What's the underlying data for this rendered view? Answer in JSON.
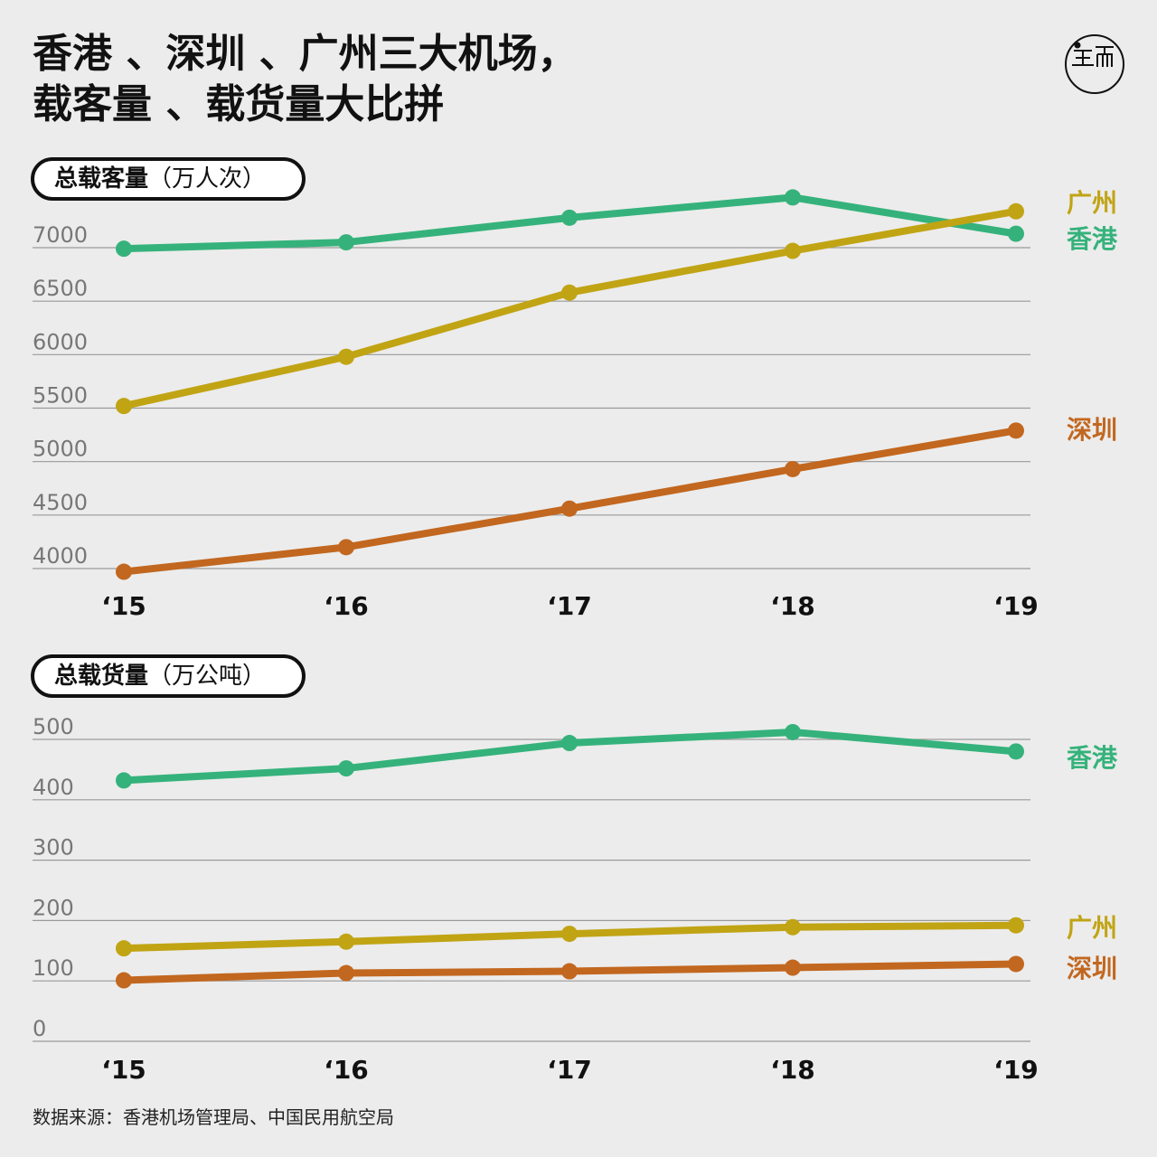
{
  "header": {
    "title_line1": "香港 、深圳 、广州三大机场，",
    "title_line2": "载客量 、载货量大比拼"
  },
  "logo": {
    "icon": "端 logo mark"
  },
  "colors": {
    "hongkong": "#35b27b",
    "guangzhou": "#c1a414",
    "shenzhen": "#c2671f"
  },
  "source": "数据来源：香港机场管理局、中国民用航空局",
  "chart_data": [
    {
      "type": "line",
      "title_bold": "总载客量",
      "title_unit": "（万人次）",
      "categories": [
        "‘15",
        "‘16",
        "‘17",
        "‘18",
        "‘19"
      ],
      "yticks": [
        "7000",
        "6500",
        "6000",
        "5500",
        "5000",
        "4500",
        "4000"
      ],
      "ylim": [
        4000,
        7000
      ],
      "grid": true,
      "series": [
        {
          "name": "香港",
          "color_key": "hongkong",
          "values": [
            6990,
            7050,
            7280,
            7470,
            7130
          ]
        },
        {
          "name": "广州",
          "color_key": "guangzhou",
          "values": [
            5520,
            5980,
            6580,
            6970,
            7340
          ]
        },
        {
          "name": "深圳",
          "color_key": "shenzhen",
          "values": [
            3970,
            4200,
            4560,
            4930,
            5290
          ]
        }
      ]
    },
    {
      "type": "line",
      "title_bold": "总载货量",
      "title_unit": "（万公吨）",
      "categories": [
        "‘15",
        "‘16",
        "‘17",
        "‘18",
        "‘19"
      ],
      "yticks": [
        "500",
        "400",
        "300",
        "200",
        "100",
        "0"
      ],
      "ylim": [
        0,
        500
      ],
      "grid": true,
      "series": [
        {
          "name": "香港",
          "color_key": "hongkong",
          "values": [
            432,
            452,
            494,
            512,
            480
          ]
        },
        {
          "name": "广州",
          "color_key": "guangzhou",
          "values": [
            154,
            165,
            178,
            189,
            192
          ]
        },
        {
          "name": "深圳",
          "color_key": "shenzhen",
          "values": [
            101,
            113,
            116,
            122,
            128
          ]
        }
      ]
    }
  ]
}
